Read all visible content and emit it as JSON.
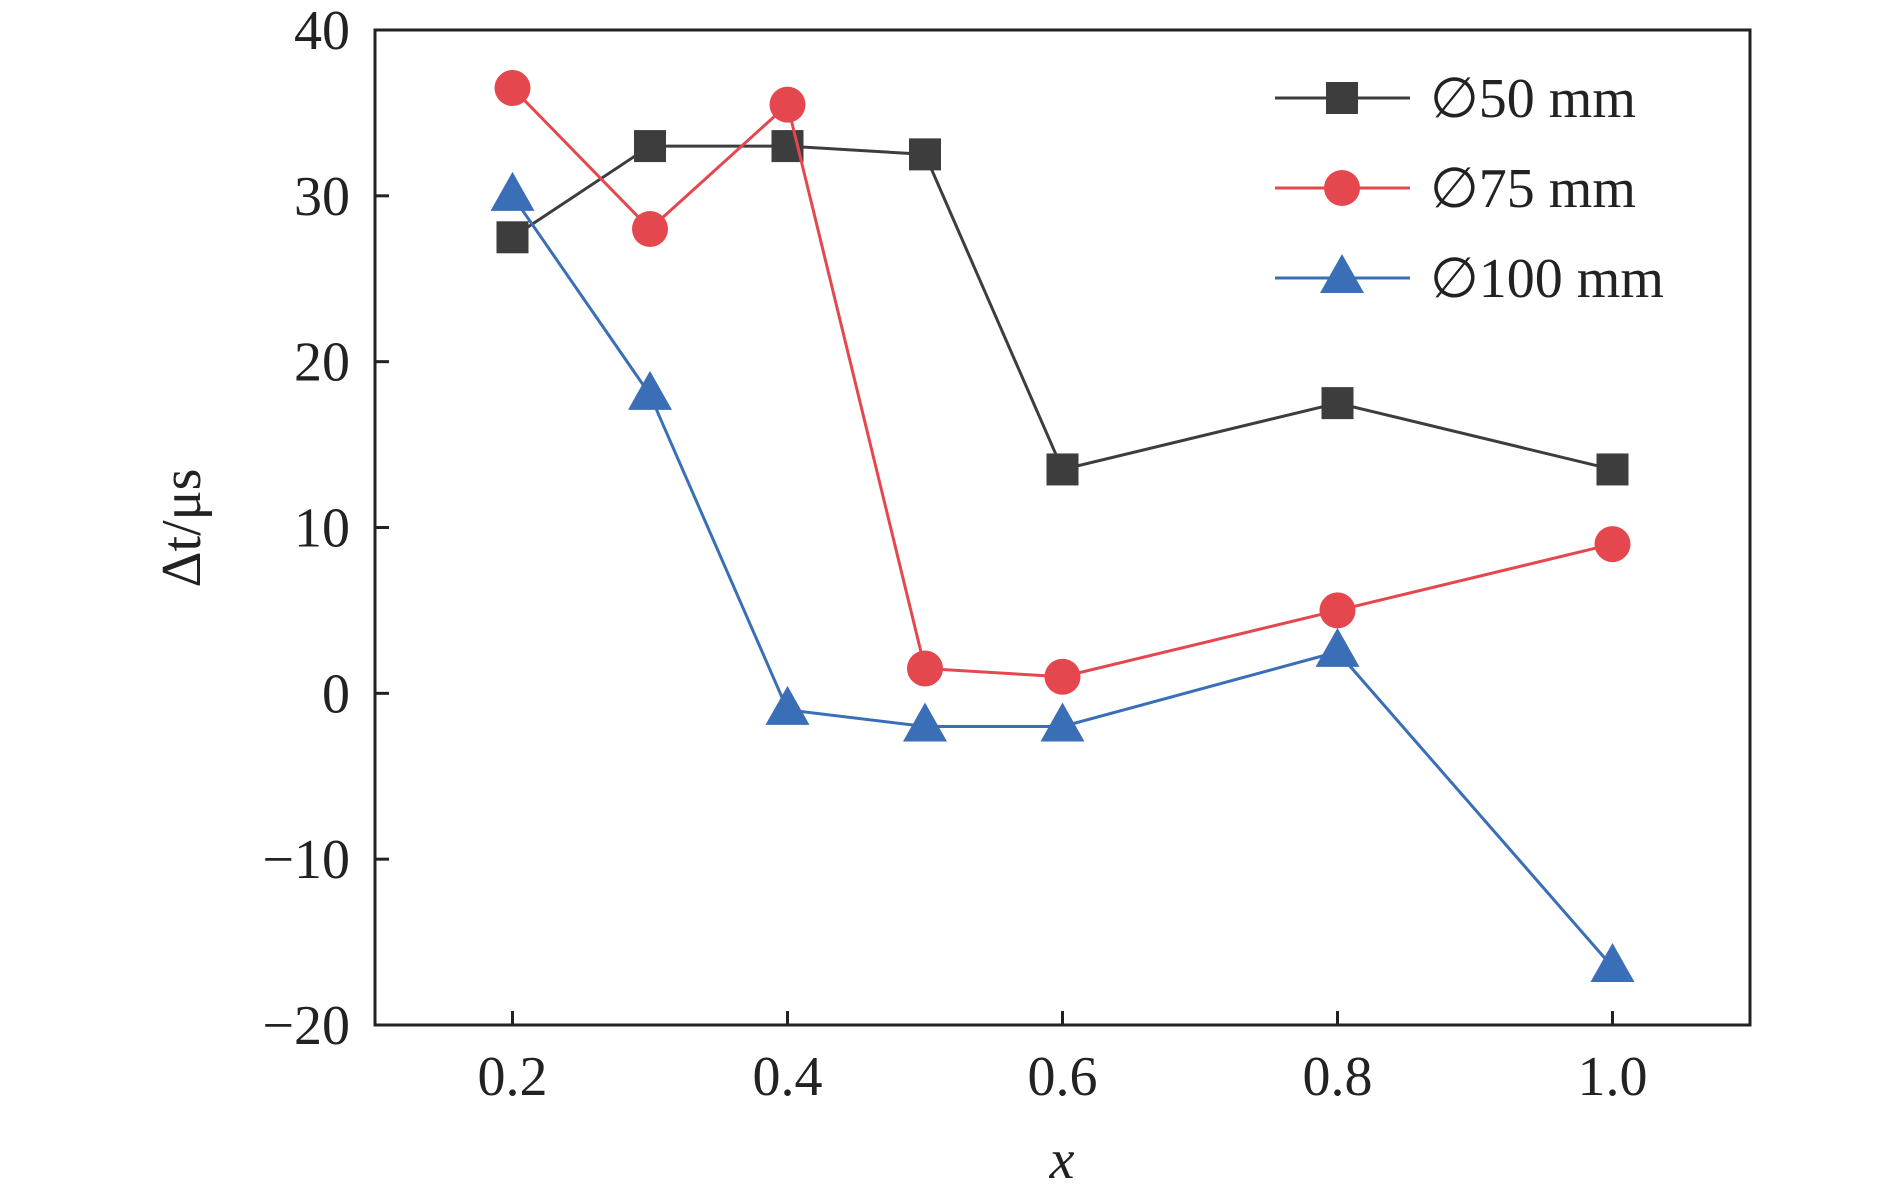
{
  "chart_data": {
    "type": "line",
    "xlabel": "x",
    "ylabel": "Δt/μs",
    "xlim": [
      0.1,
      1.1
    ],
    "ylim": [
      -20,
      40
    ],
    "xticks": [
      0.2,
      0.4,
      0.6,
      0.8,
      1.0
    ],
    "xtick_labels": [
      "0.2",
      "0.4",
      "0.6",
      "0.8",
      "1.0"
    ],
    "yticks": [
      -20,
      -10,
      0,
      10,
      20,
      30,
      40
    ],
    "ytick_labels": [
      "−20",
      "−10",
      "0",
      "10",
      "20",
      "30",
      "40"
    ],
    "grid": false,
    "legend_position": "top-right",
    "series": [
      {
        "name": "∅50 mm",
        "marker": "square",
        "color": "#3d3d3d",
        "x": [
          0.2,
          0.3,
          0.4,
          0.5,
          0.6,
          0.8,
          1.0
        ],
        "y": [
          27.5,
          33.0,
          33.0,
          32.5,
          13.5,
          17.5,
          13.5
        ]
      },
      {
        "name": "∅75 mm",
        "marker": "circle",
        "color": "#e5474e",
        "x": [
          0.2,
          0.3,
          0.4,
          0.5,
          0.6,
          0.8,
          1.0
        ],
        "y": [
          36.5,
          28.0,
          35.5,
          1.5,
          1.0,
          5.0,
          9.0
        ]
      },
      {
        "name": "∅100 mm",
        "marker": "triangle",
        "color": "#3a6fb7",
        "x": [
          0.2,
          0.3,
          0.4,
          0.5,
          0.6,
          0.8,
          1.0
        ],
        "y": [
          30.0,
          18.0,
          -1.0,
          -2.0,
          -2.0,
          2.5,
          -16.5
        ]
      }
    ]
  }
}
